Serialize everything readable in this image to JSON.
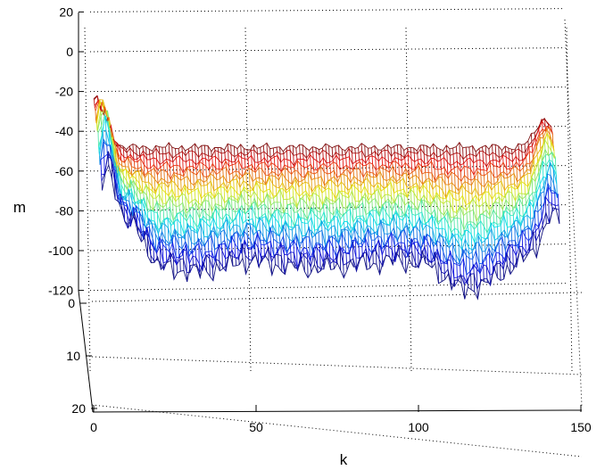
{
  "chart_data": {
    "type": "surface-mesh",
    "title": "",
    "xlabel": "k",
    "ylabel": "",
    "zlabel": "m",
    "x_ticks": [
      "0",
      "50",
      "100",
      "150"
    ],
    "y_ticks": [
      "0",
      "10",
      "20"
    ],
    "z_ticks": [
      "20",
      "0",
      "-20",
      "-40",
      "-60",
      "-80",
      "-100",
      "-120"
    ],
    "xlim": [
      0,
      150
    ],
    "ylim": [
      0,
      20
    ],
    "zlim": [
      -120,
      20
    ],
    "grid": true,
    "colormap": "jet",
    "colormap_endpoints": {
      "low": "#1f1fd0",
      "high": "#d40000"
    },
    "mesh": {
      "k_range": [
        0,
        140
      ],
      "rows": 20,
      "top_row_level": -48,
      "bottom_row_level": -103,
      "left_peak": {
        "k": 2,
        "m": -12
      },
      "right_peak": {
        "k": 138,
        "m": -34
      },
      "bottom_profile": [
        {
          "k": 10,
          "m": -82
        },
        {
          "k": 17,
          "m": -103
        },
        {
          "k": 30,
          "m": -106
        },
        {
          "k": 45,
          "m": -100
        },
        {
          "k": 60,
          "m": -104
        },
        {
          "k": 75,
          "m": -103
        },
        {
          "k": 90,
          "m": -100
        },
        {
          "k": 100,
          "m": -102
        },
        {
          "k": 110,
          "m": -115
        },
        {
          "k": 118,
          "m": -112
        },
        {
          "k": 125,
          "m": -103
        },
        {
          "k": 133,
          "m": -96
        }
      ]
    }
  }
}
